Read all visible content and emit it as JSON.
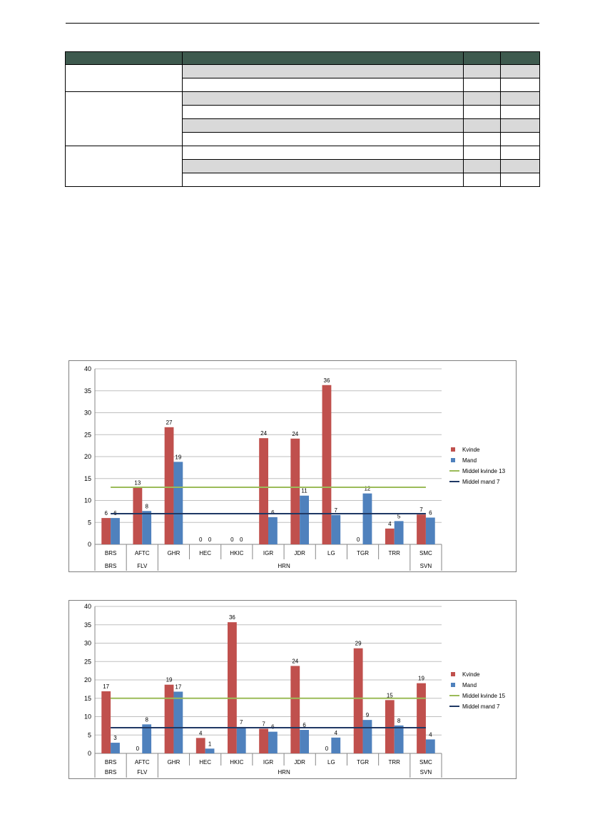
{
  "colors": {
    "table_header": "#3e5a4e",
    "table_grey_row": "#d9d9d9",
    "kvinde": "#c0504d",
    "mand": "#4f81bd",
    "middel_kvinde": "#9bbb59",
    "middel_mand": "#1f3864",
    "gridline": "#bfbfbf"
  },
  "table": {
    "columns": [
      "",
      "",
      "",
      ""
    ],
    "groups": [
      {
        "label": "",
        "rows": [
          {
            "shaded": true
          },
          {
            "shaded": false
          }
        ]
      },
      {
        "label": "",
        "rows": [
          {
            "shaded": true
          },
          {
            "shaded": false
          },
          {
            "shaded": true
          },
          {
            "shaded": false
          }
        ]
      },
      {
        "label": "",
        "rows": [
          {
            "shaded": false
          },
          {
            "shaded": true
          },
          {
            "shaded": false
          }
        ]
      }
    ]
  },
  "chart_data": [
    {
      "type": "bar",
      "categories": [
        "BRS",
        "AFTC",
        "GHR",
        "HEC",
        "HKIC",
        "IGR",
        "JDR",
        "LG",
        "TGR",
        "TRR",
        "SMC"
      ],
      "groups": [
        {
          "label": "BRS",
          "categories": [
            "BRS"
          ]
        },
        {
          "label": "FLV",
          "categories": [
            "AFTC"
          ]
        },
        {
          "label": "HRN",
          "categories": [
            "GHR",
            "HEC",
            "HKIC",
            "IGR",
            "JDR",
            "LG",
            "TGR",
            "TRR"
          ]
        },
        {
          "label": "SVN",
          "categories": [
            "SMC"
          ]
        }
      ],
      "series": [
        {
          "name": "Kvinde",
          "values": [
            6,
            12.9,
            26.7,
            0,
            0,
            24.2,
            24.1,
            36.3,
            0,
            3.6,
            6.8
          ],
          "labels": [
            "6",
            "13",
            "27",
            "0",
            "0",
            "24",
            "24",
            "36",
            "0",
            "4",
            "7"
          ]
        },
        {
          "name": "Mand",
          "values": [
            6,
            7.6,
            18.8,
            0,
            0,
            6.2,
            11.1,
            6.7,
            11.6,
            5.3,
            6.1
          ],
          "labels": [
            "6",
            "8",
            "19",
            "0",
            "0",
            "6",
            "11",
            "7",
            "12",
            "5",
            "6"
          ]
        }
      ],
      "lines": [
        {
          "name": "Middel kvinde 13",
          "value": 13
        },
        {
          "name": "Middel mand 7",
          "value": 7
        }
      ],
      "ylim": [
        0,
        40
      ],
      "yticks": [
        "0",
        "5",
        "10",
        "15",
        "20",
        "25",
        "30",
        "35",
        "40"
      ],
      "grid": true,
      "legend": "right",
      "title": "",
      "xlabel": "",
      "ylabel": ""
    },
    {
      "type": "bar",
      "categories": [
        "BRS",
        "AFTC",
        "GHR",
        "HEC",
        "HKIC",
        "IGR",
        "JDR",
        "LG",
        "TGR",
        "TRR",
        "SMC"
      ],
      "groups": [
        {
          "label": "BRS",
          "categories": [
            "BRS"
          ]
        },
        {
          "label": "FLV",
          "categories": [
            "AFTC"
          ]
        },
        {
          "label": "HRN",
          "categories": [
            "GHR",
            "HEC",
            "HKIC",
            "IGR",
            "JDR",
            "LG",
            "TGR",
            "TRR"
          ]
        },
        {
          "label": "SVN",
          "categories": [
            "SMC"
          ]
        }
      ],
      "series": [
        {
          "name": "Kvinde",
          "values": [
            16.9,
            0,
            18.7,
            4.2,
            35.7,
            6.7,
            23.8,
            0,
            28.6,
            14.5,
            19.1
          ],
          "labels": [
            "17",
            "0",
            "19",
            "4",
            "36",
            "7",
            "24",
            "0",
            "29",
            "15",
            "19"
          ]
        },
        {
          "name": "Mand",
          "values": [
            2.9,
            7.9,
            16.8,
            1.3,
            7.2,
            5.9,
            6.4,
            4.3,
            9.1,
            7.6,
            3.8
          ],
          "labels": [
            "3",
            "8",
            "17",
            "1",
            "7",
            "6",
            "6",
            "4",
            "9",
            "8",
            "4"
          ]
        }
      ],
      "lines": [
        {
          "name": "Middel kvinde 15",
          "value": 15
        },
        {
          "name": "Middel mand 7",
          "value": 7
        }
      ],
      "ylim": [
        0,
        40
      ],
      "yticks": [
        "0",
        "5",
        "10",
        "15",
        "20",
        "25",
        "30",
        "35",
        "40"
      ],
      "grid": true,
      "legend": "right",
      "title": "",
      "xlabel": "",
      "ylabel": ""
    }
  ]
}
